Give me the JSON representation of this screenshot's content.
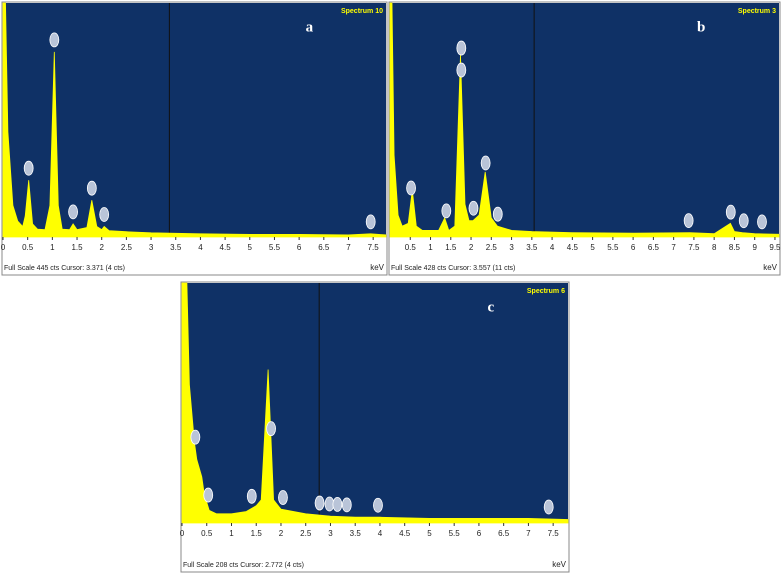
{
  "chart_data": [
    {
      "type": "area",
      "panel_label": "a",
      "title": "Spectrum 10",
      "color": "#ffff00",
      "footer": "Full Scale 445 cts Cursor: 3.371 (4 cts)",
      "x_unit": "keV",
      "cursor": 3.371,
      "xlim": [
        0,
        7.76
      ],
      "ylim": [
        0,
        445
      ],
      "xticks": [
        0,
        0.5,
        1,
        1.5,
        2,
        2.5,
        3,
        3.5,
        4,
        4.5,
        5,
        5.5,
        6,
        6.5,
        7,
        7.5
      ],
      "x": [
        0,
        0.05,
        0.1,
        0.2,
        0.3,
        0.4,
        0.45,
        0.52,
        0.6,
        0.7,
        0.85,
        0.95,
        1.04,
        1.12,
        1.2,
        1.35,
        1.42,
        1.5,
        1.7,
        1.8,
        1.9,
        2.0,
        2.05,
        2.15,
        2.5,
        3.0,
        3.5,
        4.0,
        5.0,
        6.0,
        7.0,
        7.45,
        7.76
      ],
      "values": [
        445,
        445,
        200,
        60,
        30,
        20,
        40,
        108,
        25,
        15,
        14,
        60,
        352,
        60,
        15,
        14,
        25,
        14,
        18,
        70,
        20,
        14,
        20,
        12,
        10,
        8,
        7,
        6,
        5,
        5,
        4,
        6,
        4
      ],
      "markers": [
        0.52,
        1.04,
        1.42,
        1.8,
        2.05,
        7.45
      ]
    },
    {
      "type": "area",
      "panel_label": "b",
      "title": "Spectrum 3",
      "color": "#ffff00",
      "footer": "Full Scale 428 cts Cursor: 3.557  (11 cts)",
      "x_unit": "keV",
      "cursor": 3.557,
      "xlim": [
        0,
        9.6
      ],
      "ylim": [
        0,
        428
      ],
      "xticks": [
        0.5,
        1,
        1.5,
        2,
        2.5,
        3,
        3.5,
        4,
        4.5,
        5,
        5.5,
        6,
        6.5,
        7,
        7.5,
        8,
        8.5,
        9,
        9.5
      ],
      "x": [
        0,
        0.05,
        0.1,
        0.2,
        0.3,
        0.45,
        0.55,
        0.65,
        0.8,
        1.2,
        1.35,
        1.45,
        1.6,
        1.74,
        1.85,
        1.95,
        2.05,
        2.2,
        2.35,
        2.5,
        2.65,
        3.0,
        3.5,
        4.5,
        6.0,
        7.4,
        8.0,
        8.4,
        8.5,
        8.7,
        9.0,
        9.6
      ],
      "values": [
        428,
        428,
        150,
        40,
        20,
        25,
        86,
        20,
        12,
        12,
        35,
        12,
        20,
        333,
        60,
        30,
        30,
        40,
        119,
        35,
        20,
        12,
        10,
        8,
        7,
        8,
        6,
        25,
        10,
        8,
        6,
        5
      ],
      "markers": [
        0.52,
        1.39,
        1.76,
        1.76,
        2.06,
        2.36,
        2.66,
        7.37,
        8.41,
        8.73,
        9.18
      ]
    },
    {
      "type": "area",
      "panel_label": "c",
      "title": "Spectrum 6",
      "color": "#ffff00",
      "footer": "Full Scale 208 cts Cursor: 2.772  (4 cts)",
      "x_unit": "keV",
      "cursor": 2.772,
      "xlim": [
        0,
        7.8
      ],
      "ylim": [
        0,
        208
      ],
      "xticks": [
        0,
        0.5,
        1,
        1.5,
        2,
        2.5,
        3,
        3.5,
        4,
        4.5,
        5,
        5.5,
        6,
        6.5,
        7,
        7.5
      ],
      "x": [
        0,
        0.1,
        0.15,
        0.25,
        0.3,
        0.4,
        0.45,
        0.55,
        0.7,
        1.0,
        1.3,
        1.5,
        1.6,
        1.74,
        1.85,
        2.0,
        2.5,
        3.0,
        3.5,
        4.0,
        5.0,
        6.0,
        7.0,
        7.8
      ],
      "values": [
        208,
        208,
        120,
        70,
        55,
        40,
        25,
        11,
        8,
        8,
        10,
        15,
        20,
        133,
        20,
        12,
        8,
        6,
        5,
        5,
        4,
        4,
        4,
        3
      ],
      "markers": [
        0.27,
        0.53,
        1.41,
        1.8,
        2.04,
        2.78,
        2.98,
        3.14,
        3.33,
        3.96,
        7.41
      ]
    }
  ]
}
